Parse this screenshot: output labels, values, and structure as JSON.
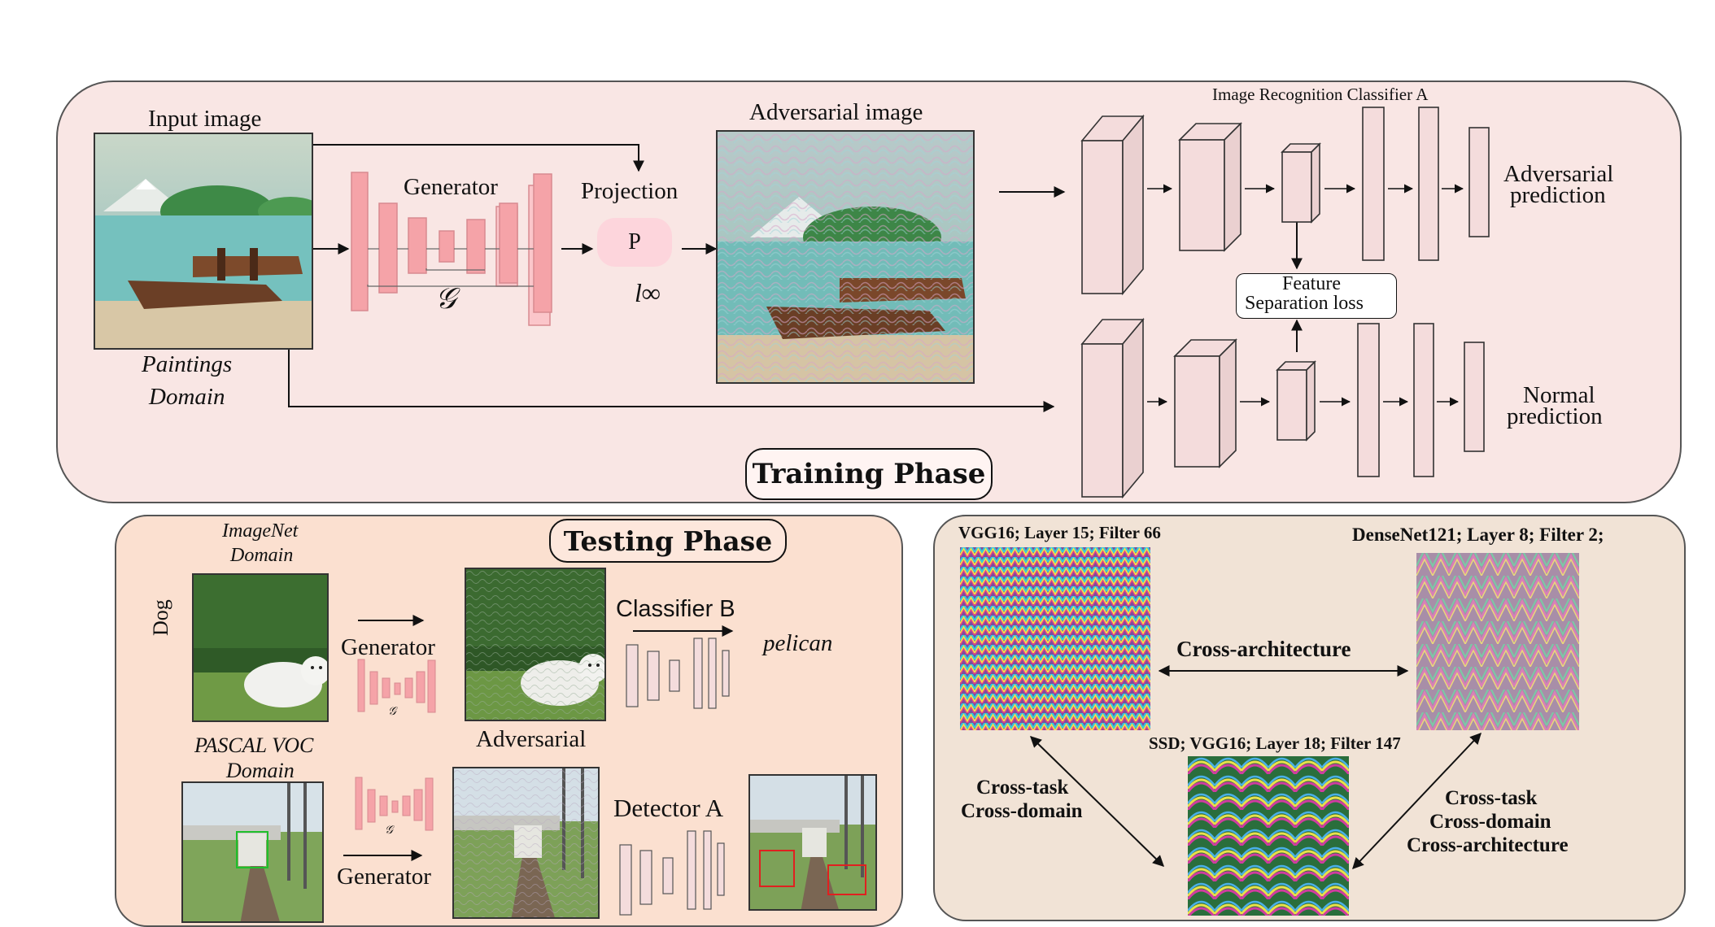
{
  "training": {
    "input_image_label": "Input image",
    "domain_line1": "Paintings",
    "domain_line2": "Domain",
    "generator_label": "Generator",
    "generator_symbol": "𝒢",
    "projection_label": "Projection",
    "projection_symbol": "P",
    "norm_symbol": "l∞",
    "adversarial_image_label": "Adversarial image",
    "classifier_label": "Image Recognition Classifier  A",
    "adv_prediction_line1": "Adversarial",
    "adv_prediction_line2": "prediction",
    "normal_prediction_line1": "Normal",
    "normal_prediction_line2": "prediction",
    "loss_line1": "Feature",
    "loss_line2": "Separation loss",
    "phase_title": "Training Phase"
  },
  "testing": {
    "phase_title": "Testing Phase",
    "imagenet_line1": "ImageNet",
    "imagenet_line2": "Domain",
    "dog_label": "Dog",
    "generator_label_top": "Generator",
    "generator_symbol": "𝒢",
    "adversarial_label": "Adversarial",
    "classifier_b_label": "Classifier  B",
    "pelican_label": "pelican",
    "pascal_line1": "PASCAL VOC",
    "pascal_line2": "Domain",
    "generator_label_bottom": "Generator",
    "detector_label": "Detector A"
  },
  "filters": {
    "vgg_label": "VGG16; Layer 15; Filter 66",
    "densenet_label": "DenseNet121; Layer 8; Filter 2;",
    "ssd_label": "SSD; VGG16; Layer 18; Filter 147",
    "cross_arch_label": "Cross-architecture",
    "left_line1": "Cross-task",
    "left_line2": "Cross-domain",
    "right_line1": "Cross-task",
    "right_line2": "Cross-domain",
    "right_line3": "Cross-architecture"
  },
  "colors": {
    "training_bg": "#f9e6e4",
    "testing_bg": "#fbe0d0",
    "filters_bg": "#f1e3d6",
    "generator_block": "#f5a3a8",
    "classifier_block": "#f4dcdc",
    "projection_fill": "#fdd5dc"
  }
}
